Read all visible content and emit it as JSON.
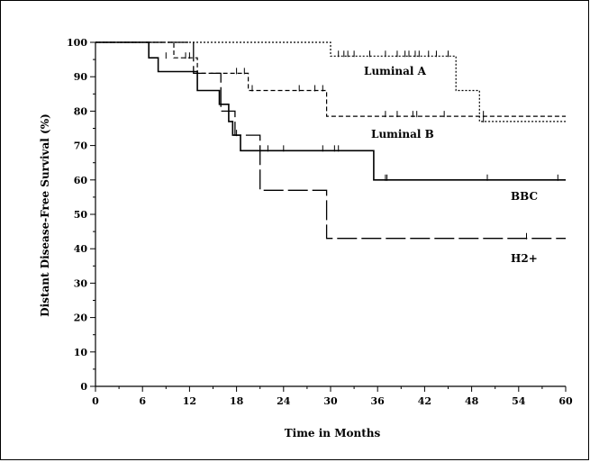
{
  "chart_data": {
    "type": "line",
    "subtype": "kaplan-meier",
    "xlabel": "Time in Months",
    "ylabel": "Distant Disease-Free Survival (%)",
    "xlim": [
      0,
      60
    ],
    "ylim": [
      0,
      100
    ],
    "x_ticks": [
      0,
      6,
      12,
      18,
      24,
      30,
      36,
      42,
      48,
      54,
      60
    ],
    "y_ticks": [
      0,
      10,
      20,
      30,
      40,
      50,
      60,
      70,
      80,
      90,
      100
    ],
    "grid": false,
    "series": [
      {
        "name": "Luminal A",
        "style": "dotted",
        "steps": [
          [
            0,
            100
          ],
          [
            30,
            100
          ],
          [
            30,
            96
          ],
          [
            46,
            96
          ],
          [
            46,
            86
          ],
          [
            49,
            86
          ],
          [
            49,
            77
          ],
          [
            60,
            77
          ]
        ],
        "censored": [
          [
            31,
            96
          ],
          [
            31.7,
            96
          ],
          [
            32.2,
            96
          ],
          [
            33,
            96
          ],
          [
            35,
            96
          ],
          [
            37,
            96
          ],
          [
            38.5,
            96
          ],
          [
            39.5,
            96
          ],
          [
            40,
            96
          ],
          [
            40.8,
            96
          ],
          [
            41.3,
            96
          ],
          [
            42.5,
            96
          ],
          [
            43.5,
            96
          ],
          [
            45,
            96
          ],
          [
            49.5,
            77
          ]
        ]
      },
      {
        "name": "Luminal B",
        "style": "dashed",
        "steps": [
          [
            0,
            100
          ],
          [
            10,
            100
          ],
          [
            10,
            95.5
          ],
          [
            13,
            95.5
          ],
          [
            13,
            91
          ],
          [
            19.5,
            91
          ],
          [
            19.5,
            86
          ],
          [
            29.5,
            86
          ],
          [
            29.5,
            78.5
          ],
          [
            60,
            78.5
          ]
        ],
        "censored": [
          [
            11.5,
            95.5
          ],
          [
            12,
            95.5
          ],
          [
            18,
            91
          ],
          [
            19,
            91
          ],
          [
            20,
            86
          ],
          [
            26,
            86
          ],
          [
            28,
            86
          ],
          [
            29,
            86
          ],
          [
            37,
            78.5
          ],
          [
            38.5,
            78.5
          ],
          [
            40.5,
            78.5
          ],
          [
            41,
            78.5
          ],
          [
            44.5,
            78.5
          ],
          [
            49.5,
            78.5
          ]
        ]
      },
      {
        "name": "BBC",
        "style": "solid",
        "steps": [
          [
            0,
            100
          ],
          [
            6.8,
            100
          ],
          [
            6.8,
            95.5
          ],
          [
            8,
            95.5
          ],
          [
            8,
            91.5
          ],
          [
            13,
            91.5
          ],
          [
            13,
            86
          ],
          [
            15.8,
            86
          ],
          [
            15.8,
            82
          ],
          [
            17,
            82
          ],
          [
            17,
            77
          ],
          [
            17.5,
            77
          ],
          [
            17.5,
            73
          ],
          [
            18.5,
            73
          ],
          [
            18.5,
            68.5
          ],
          [
            35.5,
            68.5
          ],
          [
            35.5,
            60
          ],
          [
            60,
            60
          ]
        ],
        "censored": [
          [
            9,
            95.5
          ],
          [
            18,
            73
          ],
          [
            22,
            68.5
          ],
          [
            24,
            68.5
          ],
          [
            29,
            68.5
          ],
          [
            30.5,
            68.5
          ],
          [
            31,
            68.5
          ],
          [
            37,
            60
          ],
          [
            37.2,
            60
          ],
          [
            50,
            60
          ],
          [
            59,
            60
          ]
        ]
      },
      {
        "name": "H2+",
        "style": "longdash",
        "steps": [
          [
            0,
            100
          ],
          [
            12.5,
            100
          ],
          [
            12.5,
            91
          ],
          [
            16,
            91
          ],
          [
            16,
            80
          ],
          [
            17.8,
            80
          ],
          [
            17.8,
            73
          ],
          [
            21,
            73
          ],
          [
            21,
            57
          ],
          [
            29.5,
            57
          ],
          [
            29.5,
            43
          ],
          [
            60,
            43
          ]
        ],
        "censored": [
          [
            55,
            43
          ]
        ]
      }
    ]
  }
}
